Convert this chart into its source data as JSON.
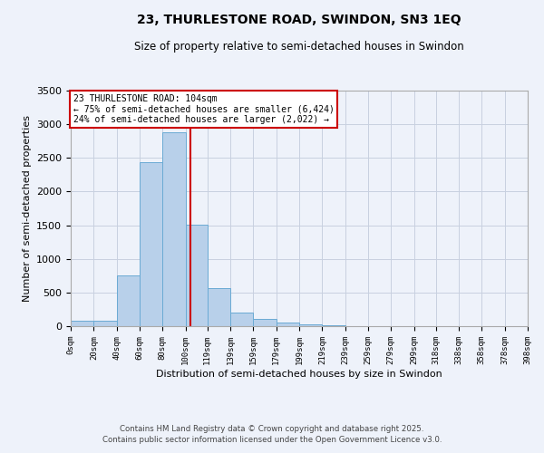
{
  "title": "23, THURLESTONE ROAD, SWINDON, SN3 1EQ",
  "subtitle": "Size of property relative to semi-detached houses in Swindon",
  "xlabel": "Distribution of semi-detached houses by size in Swindon",
  "ylabel": "Number of semi-detached properties",
  "annotation_title": "23 THURLESTONE ROAD: 104sqm",
  "annotation_line1": "← 75% of semi-detached houses are smaller (6,424)",
  "annotation_line2": "24% of semi-detached houses are larger (2,022) →",
  "property_size": 104,
  "bin_edges": [
    0,
    20,
    40,
    60,
    80,
    100,
    119,
    139,
    159,
    179,
    199,
    219,
    239,
    259,
    279,
    299,
    318,
    338,
    358,
    378,
    398
  ],
  "bar_heights": [
    80,
    80,
    750,
    2430,
    2880,
    1510,
    560,
    200,
    110,
    60,
    30,
    10,
    5,
    3,
    2,
    1,
    1,
    0,
    0,
    0
  ],
  "bar_color": "#b8d0ea",
  "bar_edge_color": "#6aaad4",
  "red_line_color": "#cc0000",
  "background_color": "#eef2fa",
  "grid_color": "#c8d0e0",
  "ylim": [
    0,
    3500
  ],
  "footer1": "Contains HM Land Registry data © Crown copyright and database right 2025.",
  "footer2": "Contains public sector information licensed under the Open Government Licence v3.0.",
  "tick_labels": [
    "0sqm",
    "20sqm",
    "40sqm",
    "60sqm",
    "80sqm",
    "100sqm",
    "119sqm",
    "139sqm",
    "159sqm",
    "179sqm",
    "199sqm",
    "219sqm",
    "239sqm",
    "259sqm",
    "279sqm",
    "299sqm",
    "318sqm",
    "338sqm",
    "358sqm",
    "378sqm",
    "398sqm"
  ],
  "ytick_labels": [
    "0",
    "500",
    "1000",
    "1500",
    "2000",
    "2500",
    "3000",
    "3500"
  ],
  "ytick_vals": [
    0,
    500,
    1000,
    1500,
    2000,
    2500,
    3000,
    3500
  ]
}
